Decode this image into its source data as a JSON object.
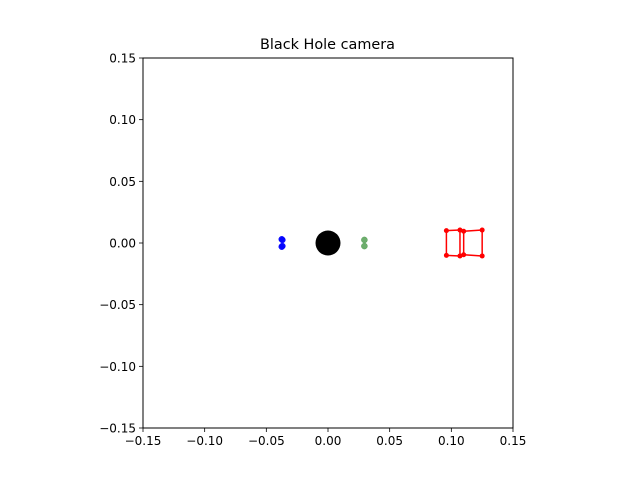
{
  "chart_data": {
    "type": "scatter",
    "title": "Black Hole camera",
    "xlabel": "",
    "ylabel": "",
    "xlim": [
      -0.15,
      0.15
    ],
    "ylim": [
      -0.15,
      0.15
    ],
    "grid": false,
    "x_ticks": [
      -0.15,
      -0.1,
      -0.05,
      0.0,
      0.05,
      0.1,
      0.15
    ],
    "x_tick_labels": [
      "−0.15",
      "−0.10",
      "−0.05",
      "0.00",
      "0.05",
      "0.10",
      "0.15"
    ],
    "y_ticks": [
      0.15,
      0.1,
      0.05,
      0.0,
      -0.05,
      -0.1,
      -0.15
    ],
    "y_tick_labels": [
      "0.15",
      "0.10",
      "0.05",
      "0.00",
      "−0.05",
      "−0.10",
      "−0.15"
    ],
    "black_hole": {
      "x": 0.0,
      "y": 0.0,
      "color": "#000000"
    },
    "series": [
      {
        "color": "#0000ff",
        "points": [
          [
            -0.0375,
            0.003
          ],
          [
            -0.037,
            0.0025
          ],
          [
            -0.0375,
            -0.003
          ],
          [
            -0.037,
            -0.0025
          ]
        ]
      },
      {
        "color": "#55a055",
        "points": [
          [
            0.0295,
            0.0025
          ],
          [
            0.0295,
            -0.0025
          ]
        ]
      }
    ],
    "camera": {
      "color": "#ff0000",
      "vertices": [
        [
          0.096,
          0.01
        ],
        [
          0.107,
          0.0105
        ],
        [
          0.11,
          0.0095
        ],
        [
          0.125,
          0.0105
        ],
        [
          0.096,
          -0.01
        ],
        [
          0.107,
          -0.0105
        ],
        [
          0.11,
          -0.0095
        ],
        [
          0.125,
          -0.0105
        ]
      ],
      "edges": [
        [
          0,
          1
        ],
        [
          1,
          5
        ],
        [
          5,
          4
        ],
        [
          4,
          0
        ],
        [
          2,
          3
        ],
        [
          3,
          7
        ],
        [
          7,
          6
        ],
        [
          6,
          2
        ],
        [
          1,
          2
        ],
        [
          5,
          6
        ]
      ]
    }
  }
}
